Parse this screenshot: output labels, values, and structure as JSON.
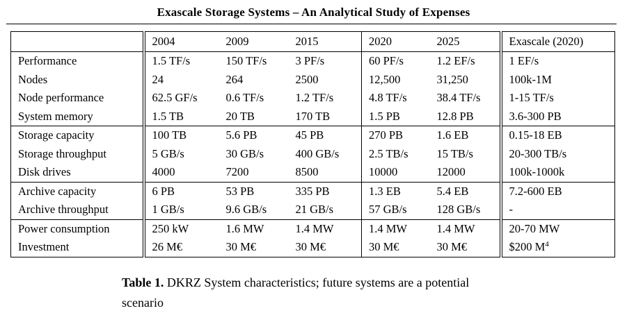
{
  "title": "Exascale Storage Systems – An Analytical Study of Expenses",
  "table": {
    "columns": [
      "2004",
      "2009",
      "2015",
      "2020",
      "2025",
      "Exascale (2020)"
    ],
    "groups": [
      {
        "rows": [
          {
            "label": "Performance",
            "values": [
              "1.5 TF/s",
              "150 TF/s",
              "3 PF/s",
              "60 PF/s",
              "1.2 EF/s",
              "1 EF/s"
            ]
          },
          {
            "label": "Nodes",
            "values": [
              "24",
              "264",
              "2500",
              "12,500",
              "31,250",
              "100k-1M"
            ]
          },
          {
            "label": "Node performance",
            "values": [
              "62.5 GF/s",
              "0.6 TF/s",
              "1.2 TF/s",
              "4.8 TF/s",
              "38.4 TF/s",
              "1-15 TF/s"
            ]
          },
          {
            "label": "System memory",
            "values": [
              "1.5 TB",
              "20 TB",
              "170 TB",
              "1.5 PB",
              "12.8 PB",
              "3.6-300 PB"
            ]
          }
        ]
      },
      {
        "rows": [
          {
            "label": "Storage capacity",
            "values": [
              "100 TB",
              "5.6 PB",
              "45 PB",
              "270 PB",
              "1.6 EB",
              "0.15-18 EB"
            ]
          },
          {
            "label": "Storage throughput",
            "values": [
              "5 GB/s",
              "30 GB/s",
              "400 GB/s",
              "2.5 TB/s",
              "15 TB/s",
              "20-300 TB/s"
            ]
          },
          {
            "label": "Disk drives",
            "values": [
              "4000",
              "7200",
              "8500",
              "10000",
              "12000",
              "100k-1000k"
            ]
          }
        ]
      },
      {
        "rows": [
          {
            "label": "Archive capacity",
            "values": [
              "6 PB",
              "53 PB",
              "335 PB",
              "1.3 EB",
              "5.4 EB",
              "7.2-600 EB"
            ]
          },
          {
            "label": "Archive throughput",
            "values": [
              "1 GB/s",
              "9.6 GB/s",
              "21 GB/s",
              "57 GB/s",
              "128 GB/s",
              "-"
            ]
          }
        ]
      },
      {
        "rows": [
          {
            "label": "Power consumption",
            "values": [
              "250 kW",
              "1.6 MW",
              "1.4 MW",
              "1.4 MW",
              "1.4 MW",
              "20-70 MW"
            ]
          },
          {
            "label": "Investment",
            "values": [
              "26 M€",
              "30 M€",
              "30 M€",
              "30 M€",
              "30 M€",
              "$200 M"
            ],
            "last_sup": "4"
          }
        ]
      }
    ]
  },
  "caption": {
    "label": "Table 1.",
    "text": "DKRZ System characteristics; future systems are a potential scenario"
  }
}
